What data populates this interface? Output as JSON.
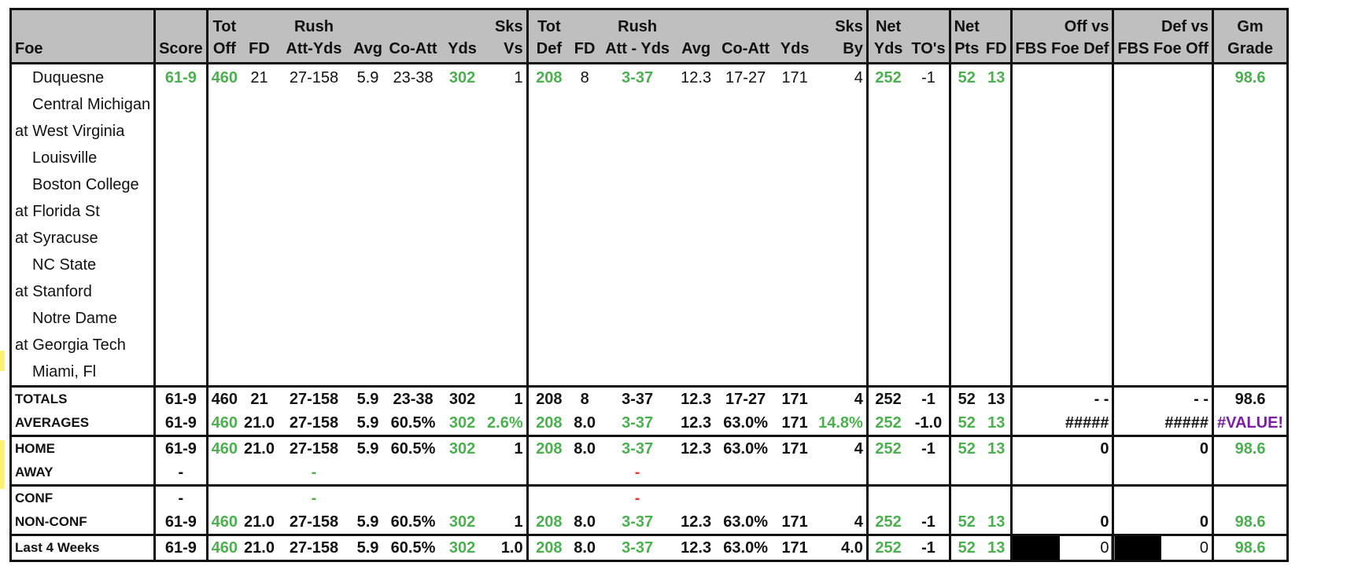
{
  "header_top": [
    "",
    "",
    "Tot",
    "",
    "Rush",
    "",
    "",
    "",
    "Sks",
    "Tot",
    "",
    "Rush",
    "",
    "",
    "",
    "Sks",
    "Net",
    "",
    "Net",
    "",
    "Off vs",
    "Def vs",
    "Gm"
  ],
  "header_bottom": [
    "Foe",
    "Score",
    "Off",
    "FD",
    "Att-Yds",
    "Avg",
    "Co-Att",
    "Yds",
    "Vs",
    "Def",
    "FD",
    "Att - Yds",
    "Avg",
    "Co-Att",
    "Yds",
    "By",
    "Yds",
    "TO's",
    "Pts",
    "FD",
    "FBS Foe Def",
    "FBS Foe Off",
    "Grade"
  ],
  "games": [
    {
      "foe": "Duquesne",
      "home": true,
      "cells": [
        "61-9",
        "460",
        "21",
        "27-158",
        "5.9",
        "23-38",
        "302",
        "1",
        "208",
        "8",
        "3-37",
        "12.3",
        "17-27",
        "171",
        "4",
        "252",
        "-1",
        "52",
        "13",
        "",
        "",
        "98.6"
      ]
    },
    {
      "foe": "Central Michigan",
      "home": true,
      "cells": [
        "",
        "",
        "",
        "",
        "",
        "",
        "",
        "",
        "",
        "",
        "",
        "",
        "",
        "",
        "",
        "",
        "",
        "",
        "",
        "",
        "",
        ""
      ]
    },
    {
      "foe": "at West Virginia",
      "home": false,
      "cells": [
        "",
        "",
        "",
        "",
        "",
        "",
        "",
        "",
        "",
        "",
        "",
        "",
        "",
        "",
        "",
        "",
        "",
        "",
        "",
        "",
        "",
        ""
      ]
    },
    {
      "foe": "Louisville",
      "home": true,
      "cells": [
        "",
        "",
        "",
        "",
        "",
        "",
        "",
        "",
        "",
        "",
        "",
        "",
        "",
        "",
        "",
        "",
        "",
        "",
        "",
        "",
        "",
        ""
      ]
    },
    {
      "foe": "Boston College",
      "home": true,
      "cells": [
        "",
        "",
        "",
        "",
        "",
        "",
        "",
        "",
        "",
        "",
        "",
        "",
        "",
        "",
        "",
        "",
        "",
        "",
        "",
        "",
        "",
        ""
      ]
    },
    {
      "foe": "at Florida St",
      "home": false,
      "cells": [
        "",
        "",
        "",
        "",
        "",
        "",
        "",
        "",
        "",
        "",
        "",
        "",
        "",
        "",
        "",
        "",
        "",
        "",
        "",
        "",
        "",
        ""
      ]
    },
    {
      "foe": "at Syracuse",
      "home": false,
      "cells": [
        "",
        "",
        "",
        "",
        "",
        "",
        "",
        "",
        "",
        "",
        "",
        "",
        "",
        "",
        "",
        "",
        "",
        "",
        "",
        "",
        "",
        ""
      ]
    },
    {
      "foe": "NC State",
      "home": true,
      "cells": [
        "",
        "",
        "",
        "",
        "",
        "",
        "",
        "",
        "",
        "",
        "",
        "",
        "",
        "",
        "",
        "",
        "",
        "",
        "",
        "",
        "",
        ""
      ]
    },
    {
      "foe": "at Stanford",
      "home": false,
      "cells": [
        "",
        "",
        "",
        "",
        "",
        "",
        "",
        "",
        "",
        "",
        "",
        "",
        "",
        "",
        "",
        "",
        "",
        "",
        "",
        "",
        "",
        ""
      ]
    },
    {
      "foe": "Notre Dame",
      "home": true,
      "cells": [
        "",
        "",
        "",
        "",
        "",
        "",
        "",
        "",
        "",
        "",
        "",
        "",
        "",
        "",
        "",
        "",
        "",
        "",
        "",
        "",
        "",
        ""
      ]
    },
    {
      "foe": "at Georgia Tech",
      "home": false,
      "cells": [
        "",
        "",
        "",
        "",
        "",
        "",
        "",
        "",
        "",
        "",
        "",
        "",
        "",
        "",
        "",
        "",
        "",
        "",
        "",
        "",
        "",
        ""
      ]
    },
    {
      "foe": "Miami, Fl",
      "home": true,
      "cells": [
        "",
        "",
        "",
        "",
        "",
        "",
        "",
        "",
        "",
        "",
        "",
        "",
        "",
        "",
        "",
        "",
        "",
        "",
        "",
        "",
        "",
        ""
      ]
    }
  ],
  "summary": [
    {
      "label": "TOTALS",
      "cells": [
        "61-9",
        "460",
        "21",
        "27-158",
        "5.9",
        "23-38",
        "302",
        "1",
        "208",
        "8",
        "3-37",
        "12.3",
        "17-27",
        "171",
        "4",
        "252",
        "-1",
        "52",
        "13",
        "-     -",
        "-     -",
        "98.6"
      ]
    },
    {
      "label": "AVERAGES",
      "cells": [
        "61-9",
        "460",
        "21.0",
        "27-158",
        "5.9",
        "60.5%",
        "302",
        "2.6%",
        "208",
        "8.0",
        "3-37",
        "12.3",
        "63.0%",
        "171",
        "14.8%",
        "252",
        "-1.0",
        "52",
        "13",
        "#####",
        "#####",
        "#VALUE!"
      ]
    },
    {
      "label": "HOME",
      "cells": [
        "61-9",
        "460",
        "21.0",
        "27-158",
        "5.9",
        "60.5%",
        "302",
        "1",
        "208",
        "8.0",
        "3-37",
        "12.3",
        "63.0%",
        "171",
        "4",
        "252",
        "-1",
        "52",
        "13",
        "0",
        "0",
        "98.6"
      ]
    },
    {
      "label": "AWAY",
      "cells": [
        "-",
        "",
        "",
        "-",
        "",
        "",
        "",
        "",
        "",
        "",
        "-",
        "",
        "",
        "",
        "",
        "",
        "",
        "",
        "",
        "",
        "",
        ""
      ]
    },
    {
      "label": "CONF",
      "cells": [
        "-",
        "",
        "",
        "-",
        "",
        "",
        "",
        "",
        "",
        "",
        "-",
        "",
        "",
        "",
        "",
        "",
        "",
        "",
        "",
        "",
        "",
        ""
      ]
    },
    {
      "label": "NON-CONF",
      "cells": [
        "61-9",
        "460",
        "21.0",
        "27-158",
        "5.9",
        "60.5%",
        "302",
        "1",
        "208",
        "8.0",
        "3-37",
        "12.3",
        "63.0%",
        "171",
        "4",
        "252",
        "-1",
        "52",
        "13",
        "0",
        "0",
        "98.6"
      ]
    },
    {
      "label": "Last 4 Weeks",
      "cells": [
        "61-9",
        "460",
        "21.0",
        "27-158",
        "5.9",
        "60.5%",
        "302",
        "1.0",
        "208",
        "8.0",
        "3-37",
        "12.3",
        "63.0%",
        "171",
        "4.0",
        "252",
        "-1",
        "52",
        "13",
        "0",
        "0",
        "98.6"
      ]
    }
  ],
  "colors": {
    "green": "#4caf50",
    "red": "#e53935",
    "purple": "#7b1fa2",
    "header_gray": "#bfbfbf"
  }
}
